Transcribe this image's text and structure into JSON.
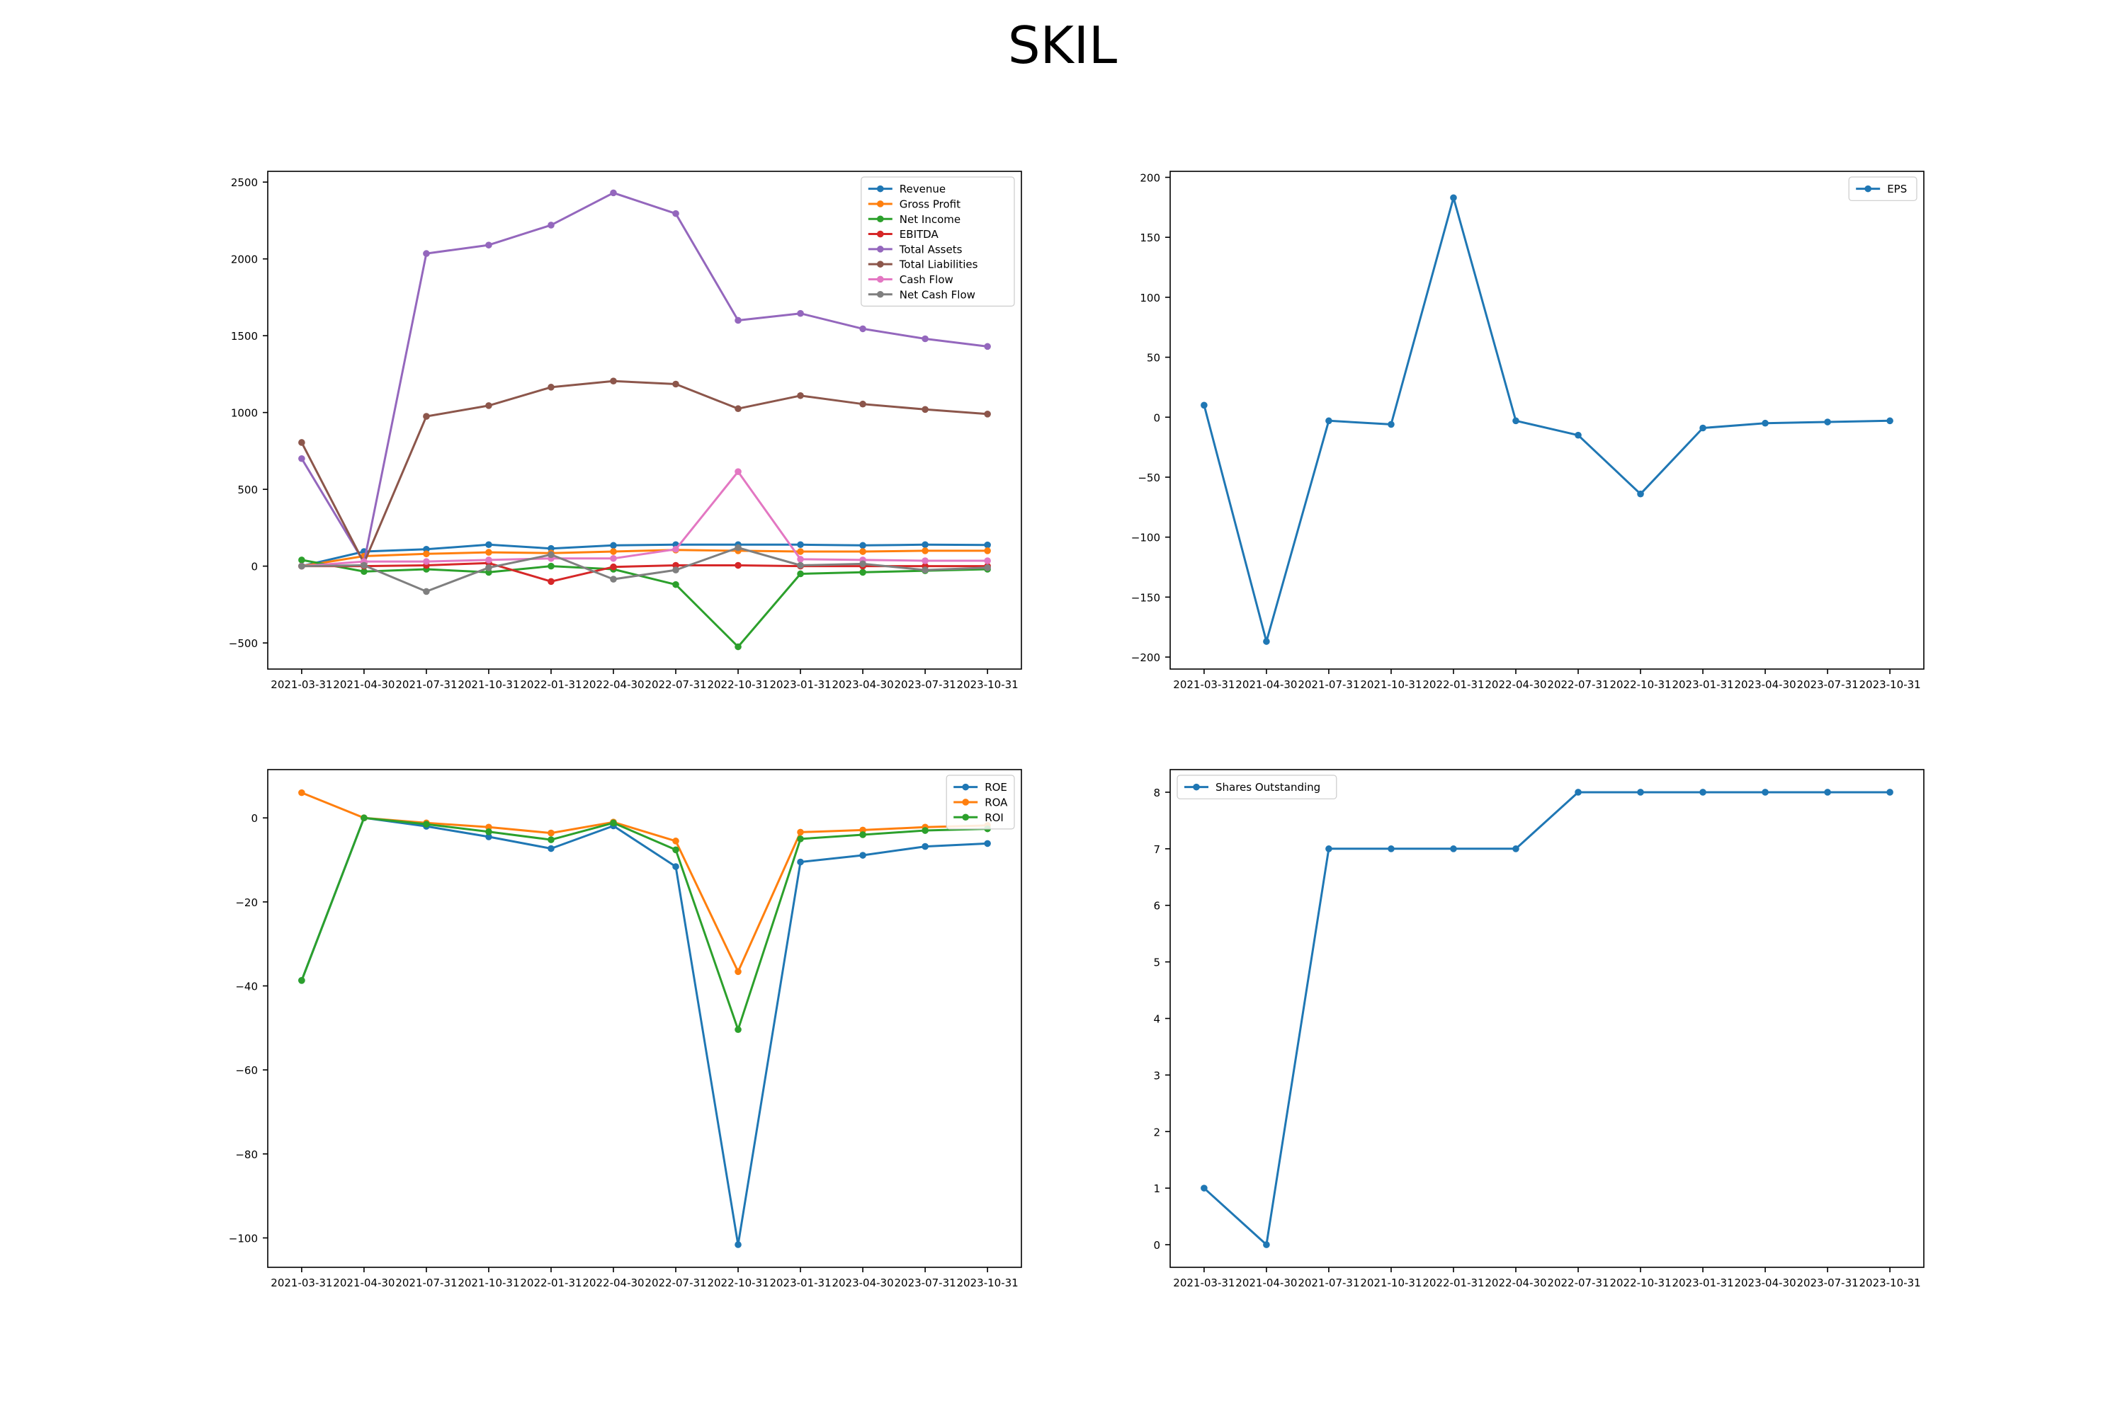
{
  "title": "SKIL",
  "colors": {
    "Revenue": "#1f77b4",
    "Gross Profit": "#ff7f0e",
    "Net Income": "#2ca02c",
    "EBITDA": "#d62728",
    "Total Assets": "#9467bd",
    "Total Liabilities": "#8c564b",
    "Cash Flow": "#e377c2",
    "Net Cash Flow": "#7f7f7f",
    "EPS": "#1f77b4",
    "ROE": "#1f77b4",
    "ROA": "#ff7f0e",
    "ROI": "#2ca02c",
    "Shares Outstanding": "#1f77b4"
  },
  "chart_data": [
    {
      "type": "line",
      "legend_position": "top-right",
      "x": [
        "2021-03-31",
        "2021-04-30",
        "2021-07-31",
        "2021-10-31",
        "2022-01-31",
        "2022-04-30",
        "2022-07-31",
        "2022-10-31",
        "2023-01-31",
        "2023-04-30",
        "2023-07-31",
        "2023-10-31"
      ],
      "ylim": [
        -670,
        2570
      ],
      "yticks": [
        -500,
        0,
        500,
        1000,
        1500,
        2000,
        2500
      ],
      "series": [
        {
          "name": "Revenue",
          "values": [
            0,
            95,
            110,
            140,
            115,
            135,
            140,
            140,
            140,
            135,
            140,
            138
          ]
        },
        {
          "name": "Gross Profit",
          "values": [
            0,
            65,
            80,
            90,
            85,
            95,
            105,
            100,
            95,
            95,
            100,
            100
          ]
        },
        {
          "name": "Net Income",
          "values": [
            40,
            -35,
            -20,
            -40,
            0,
            -20,
            -120,
            -525,
            -50,
            -40,
            -30,
            -20
          ]
        },
        {
          "name": "EBITDA",
          "values": [
            0,
            0,
            5,
            20,
            -100,
            -5,
            5,
            5,
            0,
            0,
            0,
            0
          ]
        },
        {
          "name": "Total Assets",
          "values": [
            700,
            25,
            2035,
            2090,
            2220,
            2430,
            2295,
            1600,
            1645,
            1545,
            1480,
            1430
          ]
        },
        {
          "name": "Total Liabilities",
          "values": [
            805,
            20,
            975,
            1045,
            1165,
            1205,
            1185,
            1025,
            1110,
            1055,
            1020,
            990
          ]
        },
        {
          "name": "Cash Flow",
          "values": [
            0,
            30,
            30,
            40,
            50,
            50,
            110,
            615,
            45,
            40,
            35,
            35
          ]
        },
        {
          "name": "Net Cash Flow",
          "values": [
            0,
            5,
            -165,
            -10,
            75,
            -85,
            -25,
            120,
            5,
            15,
            -25,
            -10
          ]
        }
      ]
    },
    {
      "type": "line",
      "legend_position": "top-right",
      "x": [
        "2021-03-31",
        "2021-04-30",
        "2021-07-31",
        "2021-10-31",
        "2022-01-31",
        "2022-04-30",
        "2022-07-31",
        "2022-10-31",
        "2023-01-31",
        "2023-04-30",
        "2023-07-31",
        "2023-10-31"
      ],
      "ylim": [
        -210,
        205
      ],
      "yticks": [
        -200,
        -150,
        -100,
        -50,
        0,
        50,
        100,
        150,
        200
      ],
      "series": [
        {
          "name": "EPS",
          "values": [
            10,
            -187,
            -3,
            -6,
            183,
            -3,
            -15,
            -64,
            -9,
            -5,
            -4,
            -3
          ]
        }
      ]
    },
    {
      "type": "line",
      "legend_position": "top-right",
      "x": [
        "2021-03-31",
        "2021-04-30",
        "2021-07-31",
        "2021-10-31",
        "2022-01-31",
        "2022-04-30",
        "2022-07-31",
        "2022-10-31",
        "2023-01-31",
        "2023-04-30",
        "2023-07-31",
        "2023-10-31"
      ],
      "ylim": [
        -107,
        11.5
      ],
      "yticks": [
        -100,
        -80,
        -60,
        -40,
        -20,
        0
      ],
      "series": [
        {
          "name": "ROE",
          "values": [
            -38.7,
            0,
            -2,
            -4.5,
            -7.3,
            -1.9,
            -11.6,
            -101.6,
            -10.5,
            -8.9,
            -6.8,
            -6.1
          ]
        },
        {
          "name": "ROA",
          "values": [
            6,
            0,
            -1.2,
            -2.2,
            -3.6,
            -1,
            -5.5,
            -36.6,
            -3.4,
            -2.9,
            -2.2,
            -1.8
          ]
        },
        {
          "name": "ROI",
          "values": [
            -38.7,
            0,
            -1.5,
            -3.3,
            -5.2,
            -1.2,
            -7.6,
            -50.4,
            -5,
            -4,
            -3,
            -2.6
          ]
        }
      ]
    },
    {
      "type": "line",
      "legend_position": "top-left",
      "x": [
        "2021-03-31",
        "2021-04-30",
        "2021-07-31",
        "2021-10-31",
        "2022-01-31",
        "2022-04-30",
        "2022-07-31",
        "2022-10-31",
        "2023-01-31",
        "2023-04-30",
        "2023-07-31",
        "2023-10-31"
      ],
      "ylim": [
        -0.4,
        8.4
      ],
      "yticks": [
        0,
        1,
        2,
        3,
        4,
        5,
        6,
        7,
        8
      ],
      "series": [
        {
          "name": "Shares Outstanding",
          "values": [
            1,
            0,
            7,
            7,
            7,
            7,
            8,
            8,
            8,
            8,
            8,
            8
          ]
        }
      ]
    }
  ]
}
